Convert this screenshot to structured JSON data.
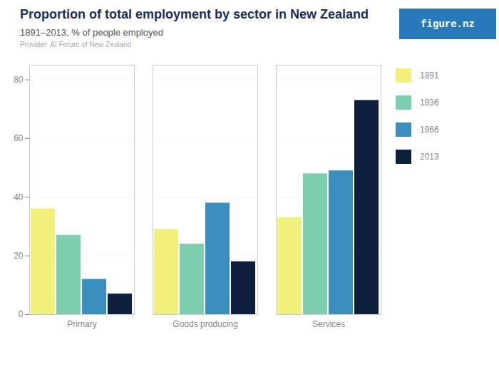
{
  "chart_data": {
    "type": "bar",
    "title": "Proportion of total employment by sector in New Zealand",
    "subtitle": "1891–2013, % of people employed",
    "annotations": [
      "Provider: AI Forum of New Zealand",
      "figure.nz"
    ],
    "categories": [
      "Primary",
      "Goods producing",
      "Services"
    ],
    "series": [
      {
        "name": "1891",
        "color": "#f0f07a",
        "values": [
          36,
          29,
          33
        ]
      },
      {
        "name": "1936",
        "color": "#7ecfb0",
        "values": [
          27,
          24,
          48
        ]
      },
      {
        "name": "1966",
        "color": "#3a8fbf",
        "values": [
          12,
          38,
          49
        ]
      },
      {
        "name": "2013",
        "color": "#0d1f3c",
        "values": [
          7,
          18,
          73
        ]
      }
    ],
    "ylim": [
      0,
      85
    ],
    "yticks": [
      0,
      20,
      40,
      60,
      80
    ],
    "grid": true,
    "legend": "right"
  }
}
